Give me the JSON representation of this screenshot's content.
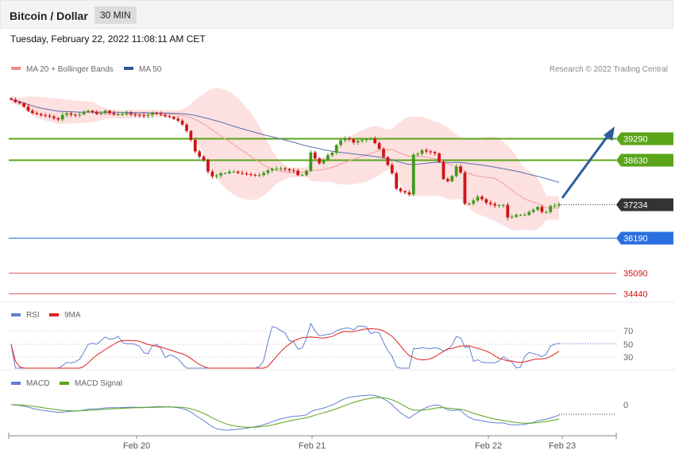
{
  "header": {
    "title": "Bitcoin / Dollar",
    "timeframe": "30 MIN"
  },
  "datetime": "Tuesday, February 22, 2022 11:08:11 AM CET",
  "copyright": "Research © 2022 Trading Central",
  "colors": {
    "up": "#3c9b1a",
    "down": "#d01515",
    "ma20": "#f0a0a0",
    "ma50": "#5a6fb0",
    "band": "#fde0e0",
    "resistance": "#5aa51a",
    "support_blue": "#2a6fe0",
    "support_red": "#e06060",
    "arrow": "#2d5c9e",
    "rsi": "#6080d0",
    "rsi_ma": "#e02020",
    "macd": "#6080d0",
    "macd_signal": "#5aa51a",
    "last": "#333333"
  },
  "chart_data": [
    {
      "type": "candlestick",
      "title": "Bitcoin / Dollar",
      "legend": [
        {
          "name": "MA 20 + Bollinger Bands",
          "color": "#f08a8a"
        },
        {
          "name": "MA 50",
          "color": "#2f5597"
        }
      ],
      "x_ticks": [
        "Feb 20",
        "Feb 21",
        "Feb 22",
        "Feb 23"
      ],
      "y_range": [
        34200,
        41300
      ],
      "levels": [
        {
          "value": 39290,
          "label": "39290",
          "kind": "resistance"
        },
        {
          "value": 38630,
          "label": "38630",
          "kind": "resistance"
        },
        {
          "value": 37234,
          "label": "37234",
          "kind": "last"
        },
        {
          "value": 36190,
          "label": "36190",
          "kind": "support"
        },
        {
          "value": 35090,
          "label": "35090",
          "kind": "support-red"
        },
        {
          "value": 34440,
          "label": "34440",
          "kind": "support-red"
        }
      ],
      "close": [
        40500,
        40420,
        40380,
        40280,
        40150,
        40080,
        40050,
        40010,
        40000,
        39970,
        39920,
        39880,
        40020,
        40070,
        40030,
        40020,
        40040,
        40110,
        40150,
        40100,
        40050,
        40080,
        40150,
        40080,
        40040,
        40040,
        40050,
        40080,
        40040,
        40020,
        40010,
        39990,
        40020,
        40080,
        40050,
        40020,
        39980,
        39960,
        39900,
        39840,
        39720,
        39520,
        39240,
        38880,
        38720,
        38620,
        38250,
        38100,
        38130,
        38200,
        38200,
        38250,
        38250,
        38210,
        38190,
        38170,
        38150,
        38140,
        38140,
        38210,
        38290,
        38340,
        38340,
        38350,
        38330,
        38290,
        38280,
        38140,
        38140,
        38280,
        38850,
        38660,
        38510,
        38620,
        38760,
        38840,
        39080,
        39230,
        39290,
        39260,
        39160,
        39210,
        39240,
        39260,
        39280,
        39140,
        38960,
        38700,
        38460,
        38200,
        37720,
        37640,
        37600,
        37540,
        38780,
        38810,
        38920,
        38880,
        38860,
        38820,
        38550,
        38020,
        37950,
        38110,
        38410,
        38220,
        37250,
        37250,
        37350,
        37470,
        37390,
        37280,
        37240,
        37190,
        37200,
        37210,
        36820,
        36840,
        36900,
        36900,
        36900,
        36990,
        37060,
        37150,
        36990,
        36990,
        37180,
        37190,
        37234
      ]
    },
    {
      "type": "line",
      "title": "RSI",
      "series": [
        {
          "name": "RSI"
        },
        {
          "name": "9MA"
        }
      ],
      "y_ticks": [
        70,
        50,
        30
      ]
    },
    {
      "type": "line",
      "title": "MACD",
      "series": [
        {
          "name": "MACD"
        },
        {
          "name": "MACD Signal"
        }
      ],
      "y_ticks": [
        0
      ]
    }
  ]
}
